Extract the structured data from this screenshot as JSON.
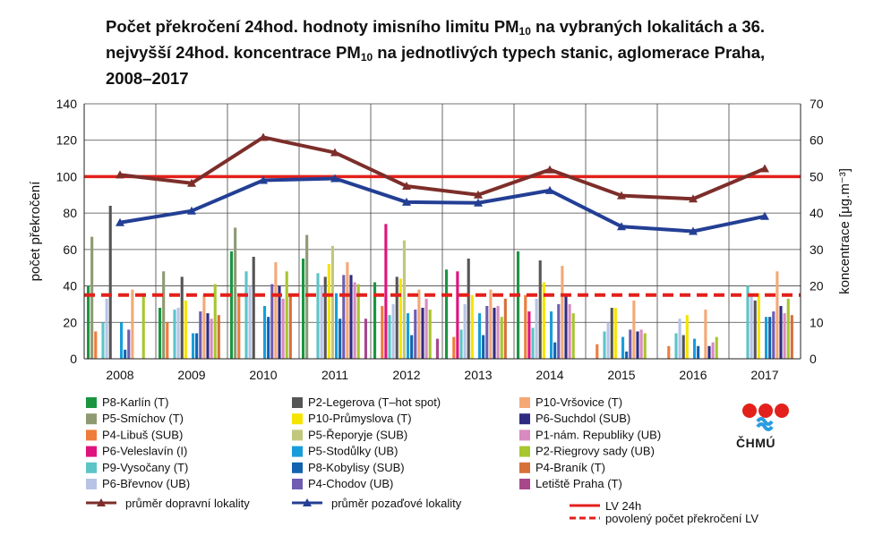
{
  "title": {
    "line1_a": "Počet překročení 24hod. hodnoty imisního limitu PM",
    "line1_sub": "10",
    "line1_b": " na vybraných lokalitách a 36.",
    "line2_a": "nejvyšší 24hod. koncentrace PM",
    "line2_sub": "10",
    "line2_b": " na jednotlivých typech stanic, aglomerace Praha,",
    "line3": "2008–2017"
  },
  "logo_text": "ČHMÚ",
  "chart_data": {
    "type": "bar",
    "categories": [
      "2008",
      "2009",
      "2010",
      "2011",
      "2012",
      "2013",
      "2014",
      "2015",
      "2016",
      "2017"
    ],
    "ylabel": "počet překročení",
    "y2label": "koncentrace [μg.m⁻³]",
    "ylim": [
      0,
      140
    ],
    "y2lim": [
      0,
      70
    ],
    "yticks": [
      "0",
      "20",
      "40",
      "60",
      "80",
      "100",
      "120",
      "140"
    ],
    "y2ticks": [
      "0",
      "10",
      "20",
      "30",
      "40",
      "50",
      "60",
      "70"
    ],
    "grid": true,
    "series": [
      {
        "name": "P8-Karlín (T)",
        "color": "#1a9641",
        "values": [
          40,
          28,
          59,
          55,
          42,
          49,
          59,
          0,
          0,
          0
        ]
      },
      {
        "name": "P5-Smíchov (T)",
        "color": "#8e9a72",
        "values": [
          67,
          48,
          72,
          68,
          0,
          0,
          0,
          0,
          0,
          0
        ]
      },
      {
        "name": "P4-Libuš (SUB)",
        "color": "#ee7d3c",
        "values": [
          15,
          20,
          34,
          0,
          29,
          12,
          35,
          8,
          7,
          0
        ]
      },
      {
        "name": "P6-Veleslavín (I)",
        "color": "#e0137e",
        "values": [
          0,
          0,
          0,
          0,
          74,
          48,
          26,
          0,
          0,
          0
        ]
      },
      {
        "name": "P9-Vysočany (T)",
        "color": "#5bc4c7",
        "values": [
          20,
          27,
          48,
          47,
          24,
          16,
          17,
          15,
          14,
          40
        ]
      },
      {
        "name": "P6-Břevnov (UB)",
        "color": "#b7c4e6",
        "values": [
          33,
          28,
          40,
          40,
          30,
          30,
          33,
          20,
          22,
          35
        ]
      },
      {
        "name": "P2-Legerova (T–hot spot)",
        "color": "#555555",
        "values": [
          84,
          45,
          56,
          45,
          45,
          55,
          54,
          28,
          13,
          32
        ]
      },
      {
        "name": "P10-Průmyslova (T)",
        "color": "#f5e400",
        "values": [
          0,
          32,
          0,
          52,
          44,
          35,
          42,
          28,
          24,
          36
        ]
      },
      {
        "name": "P5-Řeporyje (SUB)",
        "color": "#c1c77d",
        "values": [
          0,
          0,
          0,
          62,
          65,
          0,
          0,
          0,
          0,
          0
        ]
      },
      {
        "name": "P5-Stodůlky (UB)",
        "color": "#189ddb",
        "values": [
          20,
          14,
          29,
          36,
          25,
          25,
          26,
          12,
          11,
          23
        ]
      },
      {
        "name": "P8-Kobylisy (SUB)",
        "color": "#1262b0",
        "values": [
          5,
          14,
          23,
          22,
          13,
          13,
          9,
          4,
          7,
          23
        ]
      },
      {
        "name": "P4-Chodov (UB)",
        "color": "#6e5db0",
        "values": [
          16,
          26,
          41,
          46,
          27,
          29,
          30,
          16,
          0,
          26
        ]
      },
      {
        "name": "P10-Vršovice (T)",
        "color": "#f4a876",
        "values": [
          38,
          35,
          53,
          53,
          38,
          38,
          51,
          32,
          27,
          48
        ]
      },
      {
        "name": "P6-Suchdol (SUB)",
        "color": "#2e2c82",
        "values": [
          0,
          25,
          40,
          46,
          28,
          28,
          35,
          15,
          7,
          29
        ]
      },
      {
        "name": "P1-nám. Republiky (UB)",
        "color": "#d88bbf",
        "values": [
          0,
          22,
          33,
          42,
          33,
          29,
          30,
          16,
          9,
          25
        ]
      },
      {
        "name": "P2-Riegrovy sady (UB)",
        "color": "#a7c62f",
        "values": [
          36,
          41,
          48,
          41,
          27,
          23,
          25,
          14,
          12,
          33
        ]
      },
      {
        "name": "P4-Braník (T)",
        "color": "#d6703a",
        "values": [
          0,
          24,
          35,
          0,
          0,
          33,
          0,
          0,
          0,
          24
        ]
      },
      {
        "name": "Letiště Praha (T)",
        "color": "#a8478c",
        "values": [
          0,
          0,
          0,
          22,
          11,
          0,
          0,
          0,
          0,
          0
        ]
      }
    ],
    "lines": [
      {
        "name": "průměr dopravní lokality",
        "color": "#7d2e2a",
        "axis": "y2",
        "marker": "triangle",
        "values": [
          50.5,
          48.2,
          60.8,
          56.6,
          47.4,
          45.0,
          51.9,
          44.8,
          43.9,
          52.2
        ]
      },
      {
        "name": "průměr pozaďové lokality",
        "color": "#233f94",
        "axis": "y2",
        "marker": "triangle",
        "values": [
          37.4,
          40.6,
          49.0,
          49.5,
          43.0,
          42.8,
          46.2,
          36.3,
          35.0,
          39.1
        ]
      }
    ],
    "reference_lines": [
      {
        "name": "LV 24h",
        "color": "#e3201b",
        "style": "solid",
        "axis": "y2",
        "value": 50
      },
      {
        "name": "povolený počet překročení LV",
        "color": "#e3201b",
        "style": "dashed",
        "axis": "y",
        "value": 35
      }
    ]
  }
}
